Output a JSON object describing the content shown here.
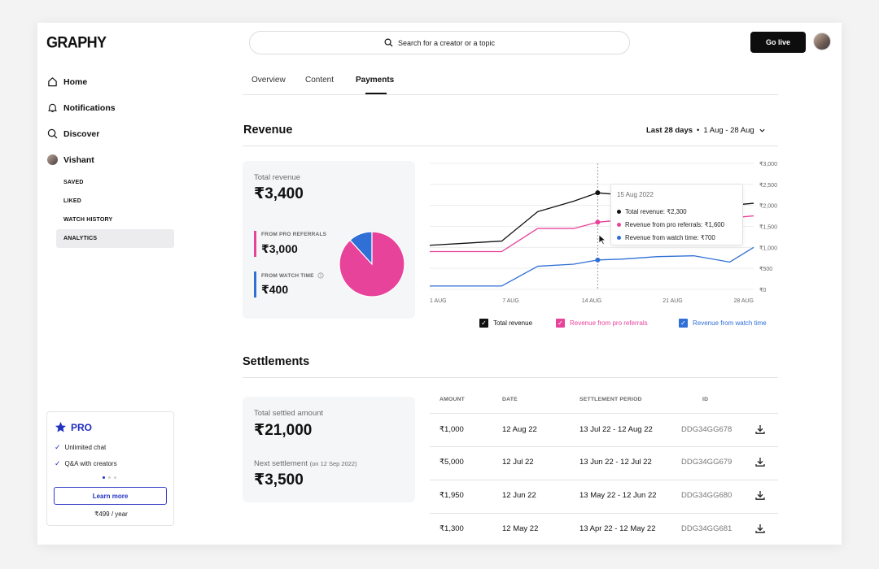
{
  "app": {
    "logo": "GRAPHY"
  },
  "search": {
    "placeholder": "Search for a creator or a topic"
  },
  "header": {
    "go_live_label": "Go live"
  },
  "sidebar": {
    "items": [
      {
        "label": "Home",
        "icon": "home-icon"
      },
      {
        "label": "Notifications",
        "icon": "bell-icon"
      },
      {
        "label": "Discover",
        "icon": "search-icon"
      },
      {
        "label": "Vishant",
        "icon": "avatar"
      }
    ],
    "sub_items": [
      "SAVED",
      "LIKED",
      "WATCH HISTORY",
      "ANALYTICS"
    ],
    "active_sub": "ANALYTICS"
  },
  "pro": {
    "title": "PRO",
    "features": [
      "Unlimited chat",
      "Q&A with creators"
    ],
    "learn_more_label": "Learn more",
    "price": "₹499 / year"
  },
  "tabs": [
    {
      "label": "Overview"
    },
    {
      "label": "Content"
    },
    {
      "label": "Payments",
      "active": true
    }
  ],
  "revenue": {
    "title": "Revenue",
    "range_label": "Last 28 days",
    "range_dates": "1 Aug - 28 Aug",
    "total_label": "Total revenue",
    "total_value": "₹3,400",
    "pro_label": "FROM PRO REFERRALS",
    "pro_value": "₹3,000",
    "watch_label": "FROM WATCH TIME",
    "watch_value": "₹400"
  },
  "tooltip": {
    "date": "15 Aug 2022",
    "total": "Total revenue: ₹2,300",
    "pro": "Revenue from pro referrals: ₹1,600",
    "watch": "Revenue from watch time: ₹700"
  },
  "legend": {
    "total": "Total revenue",
    "pro": "Revenue from pro referrals",
    "watch": "Revenue from watch time"
  },
  "colors": {
    "total": "#111111",
    "pro": "#e8439b",
    "watch": "#2f6fd6",
    "accent": "#2231c0"
  },
  "settlements": {
    "title": "Settlements",
    "total_label": "Total settled amount",
    "total_value": "₹21,000",
    "next_label": "Next settlement",
    "next_date": "(on 12 Sep 2022)",
    "next_value": "₹3,500",
    "columns": [
      "AMOUNT",
      "DATE",
      "SETTLEMENT PERIOD",
      "ID"
    ],
    "rows": [
      {
        "amount": "₹1,000",
        "date": "12 Aug 22",
        "period": "13 Jul 22 - 12 Aug 22",
        "id": "DDG34GG678"
      },
      {
        "amount": "₹5,000",
        "date": "12 Jul 22",
        "period": "13 Jun 22 - 12 Jul 22",
        "id": "DDG34GG679"
      },
      {
        "amount": "₹1,950",
        "date": "12 Jun 22",
        "period": "13 May 22 - 12 Jun 22",
        "id": "DDG34GG680"
      },
      {
        "amount": "₹1,300",
        "date": "12 May 22",
        "period": "13 Apr 22 - 12 May 22",
        "id": "DDG34GG681"
      }
    ]
  },
  "chart_data": [
    {
      "type": "pie",
      "labels": [
        "FROM PRO REFERRALS",
        "FROM WATCH TIME"
      ],
      "values": [
        3000,
        400
      ],
      "colors": [
        "#e8439b",
        "#2f6fd6"
      ]
    },
    {
      "type": "line",
      "x": [
        "1 Aug",
        "4 Aug",
        "7 Aug",
        "10 Aug",
        "13 Aug",
        "15 Aug",
        "17 Aug",
        "20 Aug",
        "23 Aug",
        "26 Aug",
        "28 Aug"
      ],
      "x_ticks": [
        "1 AUG",
        "7 AUG",
        "14 AUG",
        "21 AUG",
        "28 AUG"
      ],
      "y_ticks": [
        "₹0",
        "₹500",
        "₹1,000",
        "₹1,500",
        "₹2,000",
        "₹2,500",
        "₹3,000"
      ],
      "ylim": [
        0,
        3000
      ],
      "series": [
        {
          "name": "Total revenue",
          "values": [
            1050,
            1100,
            1150,
            1850,
            2100,
            2300,
            2250,
            2050,
            2000,
            2000,
            2050
          ]
        },
        {
          "name": "Revenue from pro referrals",
          "values": [
            900,
            900,
            900,
            1450,
            1450,
            1600,
            1650,
            1550,
            1700,
            1700,
            1750
          ]
        },
        {
          "name": "Revenue from watch time",
          "values": [
            80,
            80,
            80,
            550,
            600,
            700,
            720,
            780,
            800,
            650,
            1000
          ]
        }
      ]
    }
  ]
}
